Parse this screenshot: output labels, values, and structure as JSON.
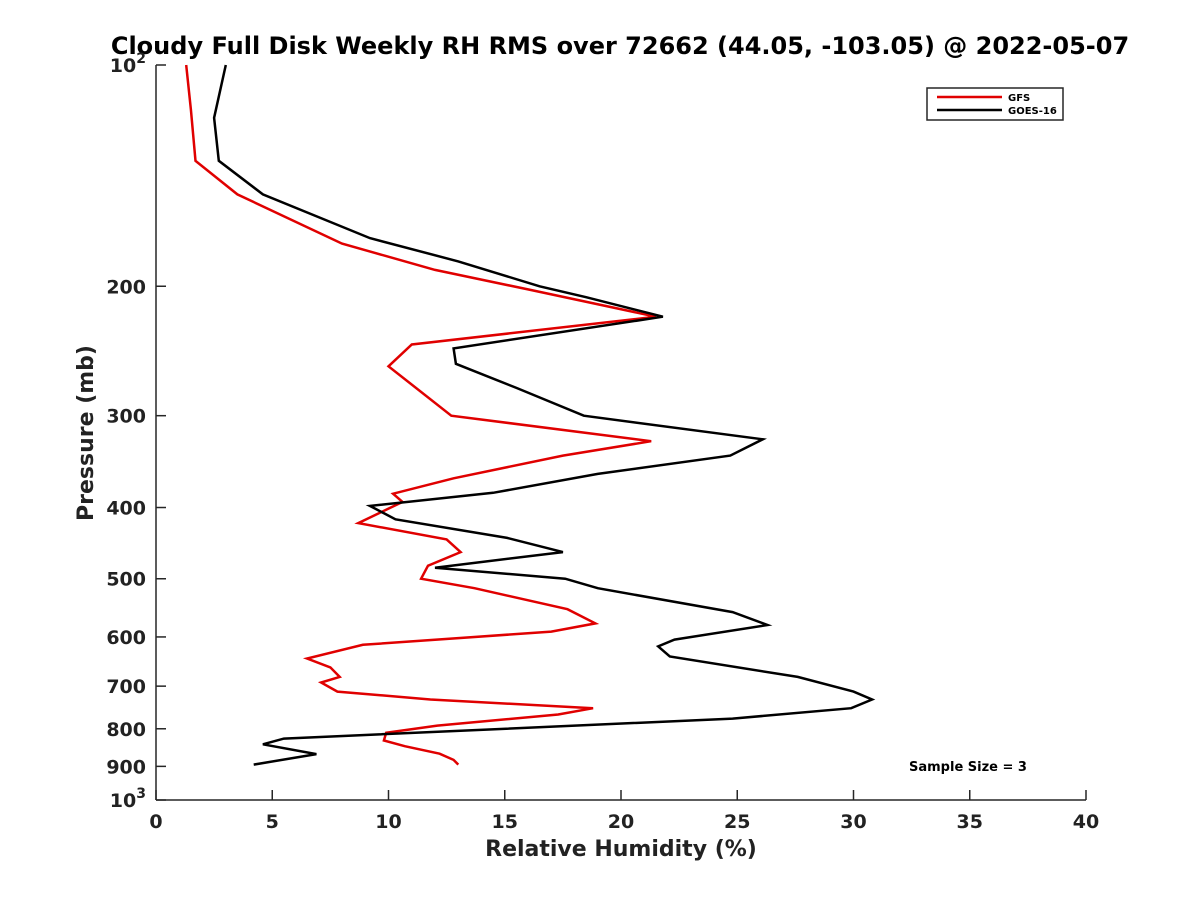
{
  "chart_data": {
    "type": "line",
    "title": "Cloudy Full Disk Weekly RH RMS over 72662 (44.05, -103.05) @ 2022-05-07",
    "xlabel": "Relative Humidity (%)",
    "ylabel": "Pressure (mb)",
    "xlim": [
      0,
      40
    ],
    "ylim": [
      100,
      1000
    ],
    "y_scale": "log",
    "y_reversed": true,
    "grid": false,
    "legend_position": "top-right",
    "x_ticks": [
      "0",
      "5",
      "10",
      "15",
      "20",
      "25",
      "30",
      "35",
      "40"
    ],
    "y_ticks": [
      {
        "value": 100,
        "base": "10",
        "exp": "2"
      },
      {
        "value": 200,
        "label": "200"
      },
      {
        "value": 300,
        "label": "300"
      },
      {
        "value": 400,
        "label": "400"
      },
      {
        "value": 500,
        "label": "500"
      },
      {
        "value": 600,
        "label": "600"
      },
      {
        "value": 700,
        "label": "700"
      },
      {
        "value": 800,
        "label": "800"
      },
      {
        "value": 900,
        "label": "900"
      },
      {
        "value": 1000,
        "base": "10",
        "exp": "3"
      }
    ],
    "series": [
      {
        "name": "GFS",
        "color": "#e00000",
        "points": [
          [
            1.3,
            100
          ],
          [
            1.5,
            115
          ],
          [
            1.7,
            135
          ],
          [
            3.5,
            150
          ],
          [
            8.0,
            175
          ],
          [
            12.0,
            190
          ],
          [
            16.0,
            202
          ],
          [
            21.5,
            220
          ],
          [
            11.0,
            240
          ],
          [
            10.0,
            257
          ],
          [
            12.7,
            300
          ],
          [
            21.3,
            325
          ],
          [
            17.5,
            340
          ],
          [
            12.8,
            365
          ],
          [
            10.2,
            383
          ],
          [
            10.6,
            393
          ],
          [
            8.7,
            420
          ],
          [
            12.5,
            442
          ],
          [
            13.1,
            460
          ],
          [
            11.7,
            480
          ],
          [
            11.4,
            500
          ],
          [
            13.7,
            515
          ],
          [
            17.7,
            550
          ],
          [
            18.9,
            575
          ],
          [
            17.0,
            590
          ],
          [
            8.9,
            615
          ],
          [
            6.5,
            642
          ],
          [
            7.5,
            660
          ],
          [
            7.9,
            680
          ],
          [
            7.1,
            692
          ],
          [
            7.8,
            712
          ],
          [
            11.8,
            730
          ],
          [
            18.8,
            750
          ],
          [
            17.3,
            765
          ],
          [
            12.1,
            792
          ],
          [
            9.9,
            810
          ],
          [
            9.8,
            830
          ],
          [
            10.7,
            845
          ],
          [
            12.2,
            865
          ],
          [
            12.8,
            882
          ],
          [
            13.0,
            895
          ]
        ]
      },
      {
        "name": "GOES-16",
        "color": "#000000",
        "points": [
          [
            3.0,
            100
          ],
          [
            2.5,
            118
          ],
          [
            2.7,
            135
          ],
          [
            4.6,
            150
          ],
          [
            9.2,
            172
          ],
          [
            13.0,
            185
          ],
          [
            16.5,
            200
          ],
          [
            18.5,
            207
          ],
          [
            21.8,
            220
          ],
          [
            12.8,
            243
          ],
          [
            12.9,
            255
          ],
          [
            15.5,
            275
          ],
          [
            18.4,
            300
          ],
          [
            26.1,
            323
          ],
          [
            24.7,
            340
          ],
          [
            19.0,
            360
          ],
          [
            14.5,
            382
          ],
          [
            9.2,
            398
          ],
          [
            10.3,
            415
          ],
          [
            15.1,
            440
          ],
          [
            17.5,
            460
          ],
          [
            12.0,
            483
          ],
          [
            17.6,
            500
          ],
          [
            19.0,
            515
          ],
          [
            24.8,
            555
          ],
          [
            26.3,
            578
          ],
          [
            22.3,
            605
          ],
          [
            21.6,
            618
          ],
          [
            22.1,
            638
          ],
          [
            27.6,
            680
          ],
          [
            30.0,
            712
          ],
          [
            30.8,
            730
          ],
          [
            29.9,
            750
          ],
          [
            24.8,
            775
          ],
          [
            5.5,
            825
          ],
          [
            4.6,
            840
          ],
          [
            6.9,
            866
          ],
          [
            4.2,
            895
          ]
        ]
      }
    ],
    "annotations": [
      "Sample Size = 3"
    ]
  }
}
